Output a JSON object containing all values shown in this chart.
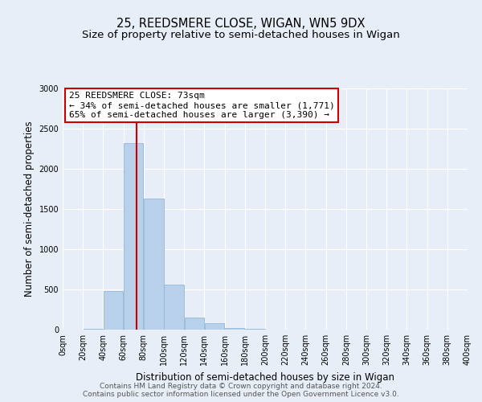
{
  "title": "25, REEDSMERE CLOSE, WIGAN, WN5 9DX",
  "subtitle": "Size of property relative to semi-detached houses in Wigan",
  "xlabel": "Distribution of semi-detached houses by size in Wigan",
  "ylabel": "Number of semi-detached properties",
  "bar_edges": [
    0,
    20,
    40,
    60,
    80,
    100,
    120,
    140,
    160,
    180,
    200,
    220,
    240,
    260,
    280,
    300,
    320,
    340,
    360,
    380,
    400
  ],
  "bar_heights": [
    5,
    10,
    480,
    2320,
    1630,
    560,
    150,
    80,
    25,
    10,
    5,
    3,
    2,
    1,
    0,
    0,
    0,
    0,
    0,
    0
  ],
  "bar_color": "#b8d0ea",
  "bar_edgecolor": "#90b8d8",
  "property_size": 73,
  "vline_color": "#cc0000",
  "annotation_title": "25 REEDSMERE CLOSE: 73sqm",
  "annotation_line1": "← 34% of semi-detached houses are smaller (1,771)",
  "annotation_line2": "65% of semi-detached houses are larger (3,390) →",
  "annotation_box_facecolor": "#ffffff",
  "annotation_box_edgecolor": "#cc0000",
  "ylim": [
    0,
    3000
  ],
  "yticks": [
    0,
    500,
    1000,
    1500,
    2000,
    2500,
    3000
  ],
  "xtick_labels": [
    "0sqm",
    "20sqm",
    "40sqm",
    "60sqm",
    "80sqm",
    "100sqm",
    "120sqm",
    "140sqm",
    "160sqm",
    "180sqm",
    "200sqm",
    "220sqm",
    "240sqm",
    "260sqm",
    "280sqm",
    "300sqm",
    "320sqm",
    "340sqm",
    "360sqm",
    "380sqm",
    "400sqm"
  ],
  "footer_line1": "Contains HM Land Registry data © Crown copyright and database right 2024.",
  "footer_line2": "Contains public sector information licensed under the Open Government Licence v3.0.",
  "bg_color": "#e8eef8",
  "plot_bg_color": "#e8eef8",
  "grid_color": "#ffffff",
  "title_fontsize": 10.5,
  "subtitle_fontsize": 9.5,
  "axis_label_fontsize": 8.5,
  "tick_fontsize": 7,
  "footer_fontsize": 6.5,
  "annotation_title_fontsize": 8.5,
  "annotation_body_fontsize": 8.0
}
